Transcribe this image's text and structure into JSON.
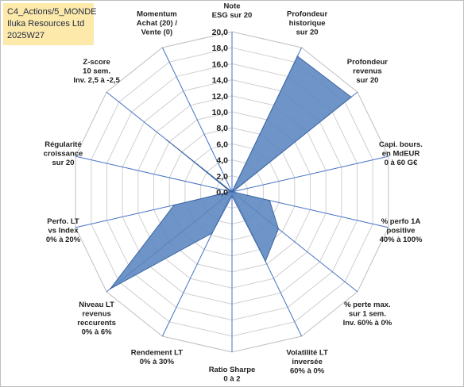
{
  "title_box": {
    "line1": "C4_Actions/5_MONDE",
    "line2": "Iluka Resources Ltd",
    "line3": "2025W27"
  },
  "colors": {
    "fill": "#5b85bf",
    "stroke": "#3e67a3",
    "grid": "#cfcfcf",
    "spoke": "#4472c4",
    "title_bg": "#fde9a9"
  },
  "chart_data": {
    "type": "radar",
    "rmin": 0,
    "rmax": 20,
    "step": 2,
    "tick_labels": [
      "0,0",
      "2,0",
      "4,0",
      "6,0",
      "8,0",
      "10,0",
      "12,0",
      "14,0",
      "16,0",
      "18,0",
      "20,0"
    ],
    "axes": [
      {
        "label": [
          "Note",
          "ESG sur 20"
        ],
        "value": 0
      },
      {
        "label": [
          "Profondeur",
          "historique",
          "sur 20"
        ],
        "value": 18.8
      },
      {
        "label": [
          "Profondeur",
          "revenus",
          "sur 20"
        ],
        "value": 19.0
      },
      {
        "label": [
          "Capi. bours.",
          "en MdEUR",
          "0 à 60 G€"
        ],
        "value": 0.1
      },
      {
        "label": [
          "% perfo 1A",
          "positive",
          "40% à 100%"
        ],
        "value": 4.8
      },
      {
        "label": [
          "% perte max.",
          "sur 1 sem.",
          "Inv. 60% à 0%"
        ],
        "value": 7.4
      },
      {
        "label": [
          "Volatilité LT",
          "inversée",
          "60% à 0%"
        ],
        "value": 9.6
      },
      {
        "label": [
          "Ratio Sharpe",
          "0 à 2"
        ],
        "value": 0.5
      },
      {
        "label": [
          "Rendement LT",
          "0% à 30%"
        ],
        "value": 5.7
      },
      {
        "label": [
          "Niveau LT",
          "revenus",
          "reccurents",
          "0% à 6%"
        ],
        "value": 19.4
      },
      {
        "label": [
          "Perfo. LT",
          "vs Index",
          "0% à 20%"
        ],
        "value": 7.4
      },
      {
        "label": [
          "Régularité",
          "croissance",
          "sur 20"
        ],
        "value": 0.2
      },
      {
        "label": [
          "Z-score",
          "10 sem.",
          "Inv. 2,5 à -2,5"
        ],
        "value": 10.4
      },
      {
        "label": [
          "Momentum",
          "Achat (20) /",
          "Vente (0)"
        ],
        "value": 0
      }
    ]
  }
}
